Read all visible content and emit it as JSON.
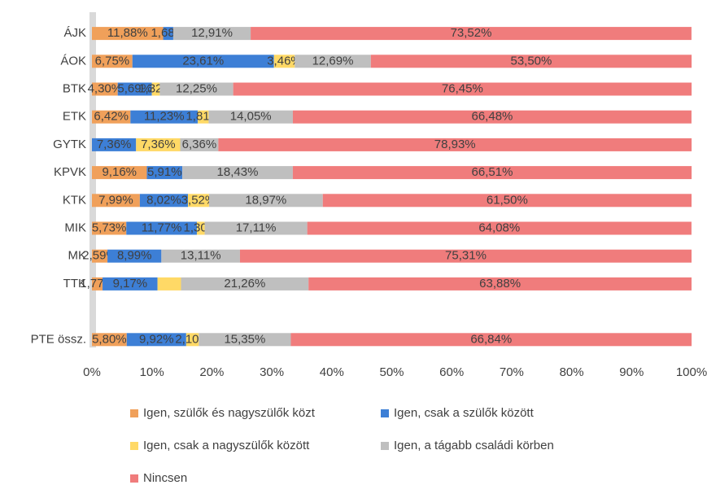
{
  "chart_data": {
    "type": "stacked-bar-horizontal",
    "categories": [
      "ÁJK",
      "ÁOK",
      "BTK",
      "ETK",
      "GYTK",
      "KPVK",
      "KTK",
      "MIK",
      "MK",
      "TTK",
      null,
      "PTE össz."
    ],
    "series": [
      {
        "name": "Igen, szülők és nagyszülők közt",
        "color": "#f0a05a",
        "values": [
          11.88,
          6.75,
          4.3,
          6.42,
          null,
          9.16,
          7.99,
          5.73,
          2.59,
          1.77,
          null,
          5.8
        ],
        "value_labels": [
          "11,88%",
          "6,75%",
          "4,30%",
          "6,42%",
          null,
          "9,16%",
          "7,99%",
          "5,73%",
          "2,59%",
          "1,77%",
          null,
          "5,80%"
        ]
      },
      {
        "name": "Igen, csak a szülők között",
        "color": "#3d7fd6",
        "values": [
          1.68,
          23.61,
          5.69,
          11.23,
          7.36,
          5.91,
          8.02,
          11.77,
          8.99,
          9.17,
          null,
          9.92
        ],
        "value_labels": [
          "1,68%",
          "23,61%",
          "5,69%",
          "11,23%",
          "7,36%",
          "5,91%",
          "8,02%",
          "11,77%",
          "8,99%",
          "9,17%",
          null,
          "9,92%"
        ]
      },
      {
        "name": "Igen, csak a nagyszülők között",
        "color": "#ffd966",
        "values": [
          null,
          3.46,
          1.32,
          1.81,
          7.36,
          null,
          3.52,
          1.3,
          null,
          3.92,
          null,
          2.1
        ],
        "value_labels": [
          null,
          "3,46%",
          "1,32%",
          "1,81%",
          "7,36%",
          null,
          "3,52%",
          "1,30%",
          null,
          null,
          null,
          "2,10%"
        ]
      },
      {
        "name": "Igen, a tágabb családi körben",
        "color": "#bfbfbf",
        "values": [
          12.91,
          12.69,
          12.25,
          14.05,
          6.36,
          18.43,
          18.97,
          17.11,
          13.11,
          21.26,
          null,
          15.35
        ],
        "value_labels": [
          "12,91%",
          "12,69%",
          "12,25%",
          "14,05%",
          "6,36%",
          "18,43%",
          "18,97%",
          "17,11%",
          "13,11%",
          "21,26%",
          null,
          "15,35%"
        ]
      },
      {
        "name": "Nincsen",
        "color": "#f07c7c",
        "values": [
          73.52,
          53.5,
          76.45,
          66.48,
          78.93,
          66.51,
          61.5,
          64.08,
          75.31,
          63.88,
          null,
          66.84
        ],
        "value_labels": [
          "73,52%",
          "53,50%",
          "76,45%",
          "66,48%",
          "78,93%",
          "66,51%",
          "61,50%",
          "64,08%",
          "75,31%",
          "63,88%",
          null,
          "66,84%"
        ]
      }
    ],
    "xlim": [
      0,
      100
    ],
    "xticks": [
      {
        "value": 0,
        "label": "0%"
      },
      {
        "value": 10,
        "label": "10%"
      },
      {
        "value": 20,
        "label": "20%"
      },
      {
        "value": 30,
        "label": "30%"
      },
      {
        "value": 40,
        "label": "40%"
      },
      {
        "value": 50,
        "label": "50%"
      },
      {
        "value": 60,
        "label": "60%"
      },
      {
        "value": 70,
        "label": "70%"
      },
      {
        "value": 80,
        "label": "80%"
      },
      {
        "value": 90,
        "label": "90%"
      },
      {
        "value": 100,
        "label": "100%"
      }
    ],
    "legend": "bottom"
  }
}
